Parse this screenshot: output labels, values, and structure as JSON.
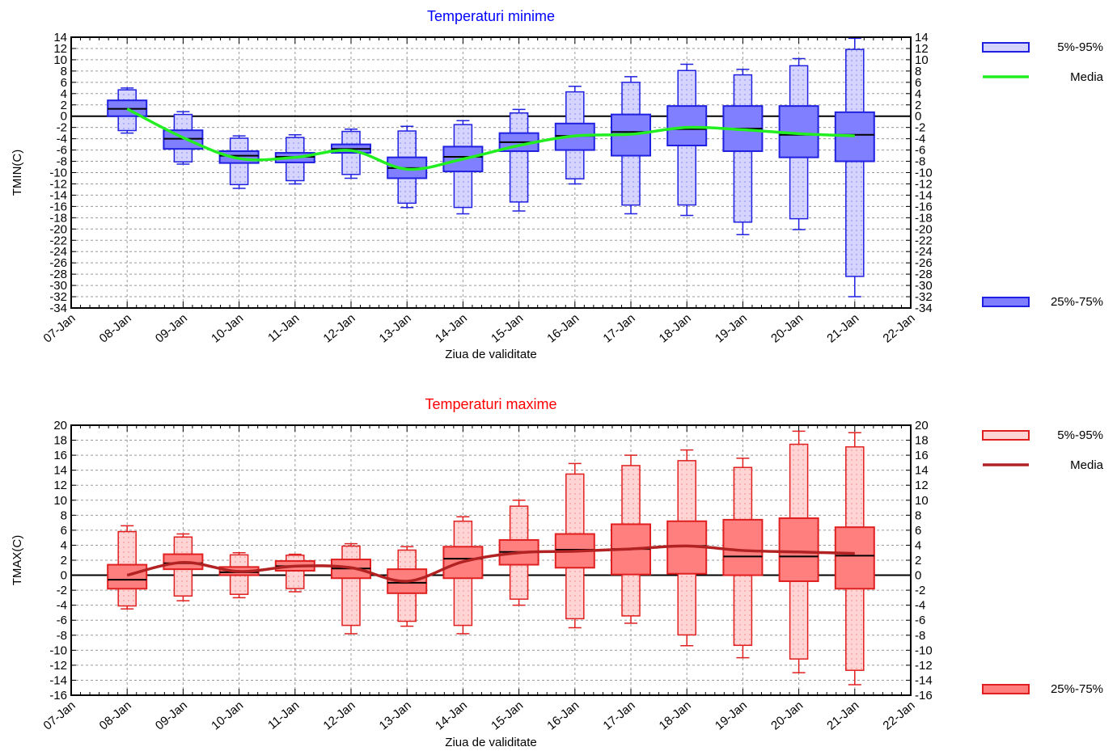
{
  "chart_data": [
    {
      "type": "box",
      "title": "Temperaturi minime",
      "xlabel": "Ziua de validitate",
      "ylabel": "TMIN(C)",
      "ylim": [
        -34,
        14
      ],
      "ytick_step": 2,
      "x_ticks": [
        "07-Jan",
        "08-Jan",
        "09-Jan",
        "10-Jan",
        "11-Jan",
        "12-Jan",
        "13-Jan",
        "14-Jan",
        "15-Jan",
        "16-Jan",
        "17-Jan",
        "18-Jan",
        "19-Jan",
        "20-Jan",
        "21-Jan",
        "22-Jan"
      ],
      "categories": [
        "08-Jan",
        "09-Jan",
        "10-Jan",
        "11-Jan",
        "12-Jan",
        "13-Jan",
        "14-Jan",
        "15-Jan",
        "16-Jan",
        "17-Jan",
        "18-Jan",
        "19-Jan",
        "20-Jan",
        "21-Jan"
      ],
      "series": [
        {
          "name": "5%-95%",
          "p5": [
            -3.0,
            -8.5,
            -12.8,
            -12.0,
            -11.0,
            -16.2,
            -17.3,
            -16.8,
            -12.0,
            -17.3,
            -17.6,
            -21.0,
            -20.1,
            -32.0
          ],
          "p95": [
            5.0,
            0.8,
            -3.5,
            -3.3,
            -2.3,
            -1.8,
            -0.8,
            1.2,
            5.3,
            7.0,
            9.2,
            8.3,
            10.2,
            13.8
          ]
        },
        {
          "name": "25%-75%",
          "q1": [
            0.0,
            -5.8,
            -8.3,
            -8.2,
            -6.5,
            -11.0,
            -9.8,
            -6.2,
            -6.0,
            -7.0,
            -5.2,
            -6.2,
            -7.3,
            -8.0
          ],
          "q3": [
            2.8,
            -2.5,
            -6.2,
            -6.5,
            -5.0,
            -7.3,
            -5.4,
            -3.0,
            -1.3,
            0.3,
            1.8,
            1.8,
            1.8,
            0.7
          ]
        },
        {
          "name": "Median",
          "values": [
            1.3,
            -4.0,
            -7.0,
            -7.2,
            -5.8,
            -9.2,
            -7.2,
            -4.6,
            -3.5,
            -2.8,
            -2.3,
            -2.2,
            -3.3,
            -3.3
          ]
        },
        {
          "name": "Media",
          "values": [
            1.3,
            -3.8,
            -7.5,
            -7.3,
            -6.1,
            -9.4,
            -7.6,
            -5.2,
            -3.5,
            -3.2,
            -2.0,
            -2.4,
            -3.1,
            -3.5
          ]
        }
      ],
      "legend": [
        "5%-95%",
        "Media",
        "25%-75%"
      ],
      "legend_position": "right",
      "grid": true,
      "colors": {
        "title": "#0000ff",
        "box_stroke": "#2020e0",
        "box_fill_inner": "#7f7fff",
        "box_fill_outer": "#d4d4ff",
        "media_line": "#22ee22"
      }
    },
    {
      "type": "box",
      "title": "Temperaturi maxime",
      "xlabel": "Ziua de validitate",
      "ylabel": "TMAX(C)",
      "ylim": [
        -16,
        20
      ],
      "ytick_step": 2,
      "x_ticks": [
        "07-Jan",
        "08-Jan",
        "09-Jan",
        "10-Jan",
        "11-Jan",
        "12-Jan",
        "13-Jan",
        "14-Jan",
        "15-Jan",
        "16-Jan",
        "17-Jan",
        "18-Jan",
        "19-Jan",
        "20-Jan",
        "21-Jan",
        "22-Jan"
      ],
      "categories": [
        "08-Jan",
        "09-Jan",
        "10-Jan",
        "11-Jan",
        "12-Jan",
        "13-Jan",
        "14-Jan",
        "15-Jan",
        "16-Jan",
        "17-Jan",
        "18-Jan",
        "19-Jan",
        "20-Jan",
        "21-Jan"
      ],
      "series": [
        {
          "name": "5%-95%",
          "p5": [
            -4.5,
            -3.4,
            -3.0,
            -2.2,
            -7.8,
            -6.8,
            -7.8,
            -4.0,
            -7.0,
            -6.4,
            -9.4,
            -11.0,
            -13.0,
            -14.6
          ],
          "p95": [
            6.6,
            5.5,
            3.0,
            2.8,
            4.2,
            3.8,
            7.8,
            10.0,
            14.9,
            16.0,
            16.7,
            15.6,
            19.2,
            19.0
          ]
        },
        {
          "name": "25%-75%",
          "q1": [
            -1.8,
            0.8,
            0.0,
            0.6,
            -0.4,
            -2.4,
            -0.4,
            1.4,
            1.0,
            0.1,
            0.2,
            0.0,
            -0.8,
            -1.8
          ],
          "q3": [
            1.4,
            2.8,
            1.1,
            1.9,
            2.1,
            0.8,
            3.8,
            4.7,
            5.5,
            6.8,
            7.2,
            7.4,
            7.6,
            6.4
          ]
        },
        {
          "name": "Median",
          "values": [
            -0.6,
            1.6,
            0.4,
            1.2,
            0.9,
            -1.0,
            2.2,
            3.1,
            3.4,
            3.5,
            3.9,
            2.5,
            2.5,
            2.6
          ]
        },
        {
          "name": "Media",
          "values": [
            0.0,
            1.7,
            0.5,
            1.2,
            1.0,
            -0.8,
            1.8,
            3.0,
            3.2,
            3.5,
            3.9,
            3.3,
            3.1,
            2.9
          ]
        }
      ],
      "legend": [
        "5%-95%",
        "Media",
        "25%-75%"
      ],
      "legend_position": "right",
      "grid": true,
      "colors": {
        "title": "#ff0000",
        "box_stroke": "#e02020",
        "box_fill_inner": "#ff7f7f",
        "box_fill_outer": "#ffd4d4",
        "media_line": "#b22222"
      }
    }
  ]
}
